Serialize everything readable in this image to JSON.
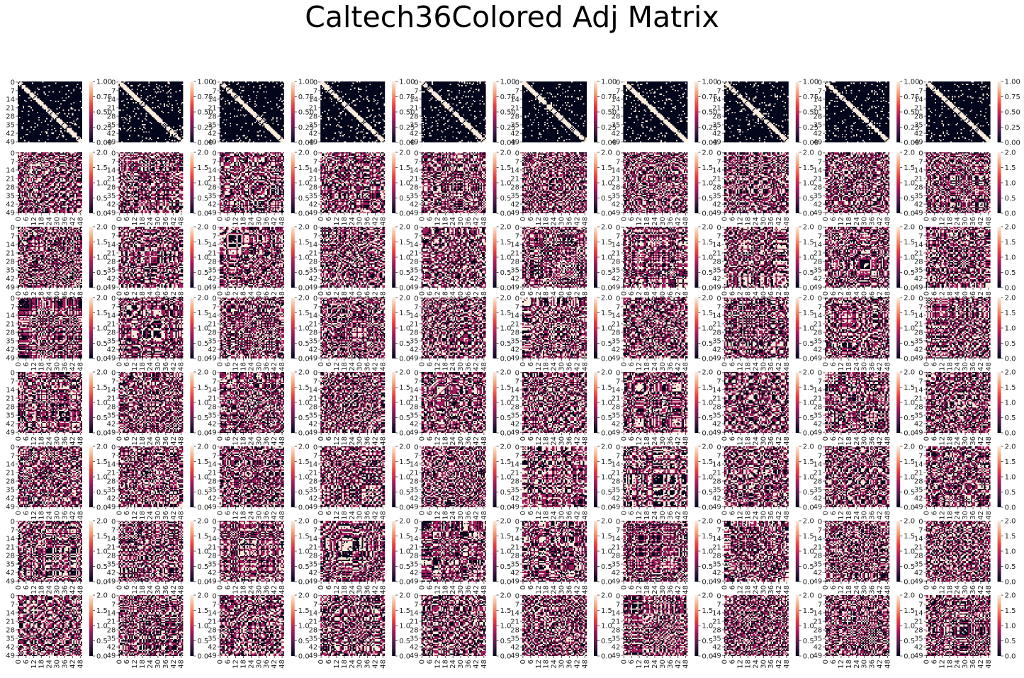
{
  "title": "Caltech36Colored Adj Matrix",
  "colors": {
    "background": "#ffffff",
    "cmap_rocket": [
      "#03051a",
      "#4c1d4b",
      "#a11a5b",
      "#e83f3f",
      "#f69c73",
      "#faebdd"
    ]
  },
  "chart_data": {
    "type": "heatmap",
    "layout": {
      "rows": 8,
      "cols": 10
    },
    "matrix_size": 50,
    "y_tick_labels": [
      "0",
      "7",
      "14",
      "21",
      "28",
      "35",
      "42",
      "49"
    ],
    "x_tick_labels_first_row": [],
    "x_tick_labels": [
      "0",
      "6",
      "12",
      "18",
      "24",
      "30",
      "36",
      "42",
      "48"
    ],
    "rows": [
      {
        "row": 1,
        "value_range": [
          0,
          1
        ],
        "colorbar_ticks": [
          "0.00",
          "0.25",
          "0.50",
          "0.75",
          "1.00"
        ],
        "content": "binary adjacency matrix (0/1) with diagonal band"
      },
      {
        "row": 2,
        "value_range": [
          0,
          2
        ],
        "colorbar_ticks": [
          "0.0",
          "0.5",
          "1.0",
          "1.5",
          "2.0"
        ],
        "content": "colored adjacency, values 0/1/2"
      },
      {
        "row": 3,
        "value_range": [
          0,
          2
        ],
        "colorbar_ticks": [
          "0.0",
          "0.5",
          "1.0",
          "1.5",
          "2.0"
        ],
        "content": "colored adjacency, values 0/1/2"
      },
      {
        "row": 4,
        "value_range": [
          0,
          2
        ],
        "colorbar_ticks": [
          "0.0",
          "0.5",
          "1.0",
          "1.5",
          "2.0"
        ],
        "content": "colored adjacency, values 0/1/2"
      },
      {
        "row": 5,
        "value_range": [
          0,
          2
        ],
        "colorbar_ticks": [
          "0.0",
          "0.5",
          "1.0",
          "1.5",
          "2.0"
        ],
        "content": "colored adjacency, values 0/1/2"
      },
      {
        "row": 6,
        "value_range": [
          0,
          2
        ],
        "colorbar_ticks": [
          "0.0",
          "0.5",
          "1.0",
          "1.5",
          "2.0"
        ],
        "content": "colored adjacency, values 0/1/2"
      },
      {
        "row": 7,
        "value_range": [
          0,
          2
        ],
        "colorbar_ticks": [
          "0.0",
          "0.5",
          "1.0",
          "1.5",
          "2.0"
        ],
        "content": "colored adjacency, values 0/1/2"
      },
      {
        "row": 8,
        "value_range": [
          0,
          2
        ],
        "colorbar_ticks": [
          "0.0",
          "0.5",
          "1.0",
          "1.5",
          "2.0"
        ],
        "content": "colored adjacency, values 0/1/2"
      }
    ]
  }
}
